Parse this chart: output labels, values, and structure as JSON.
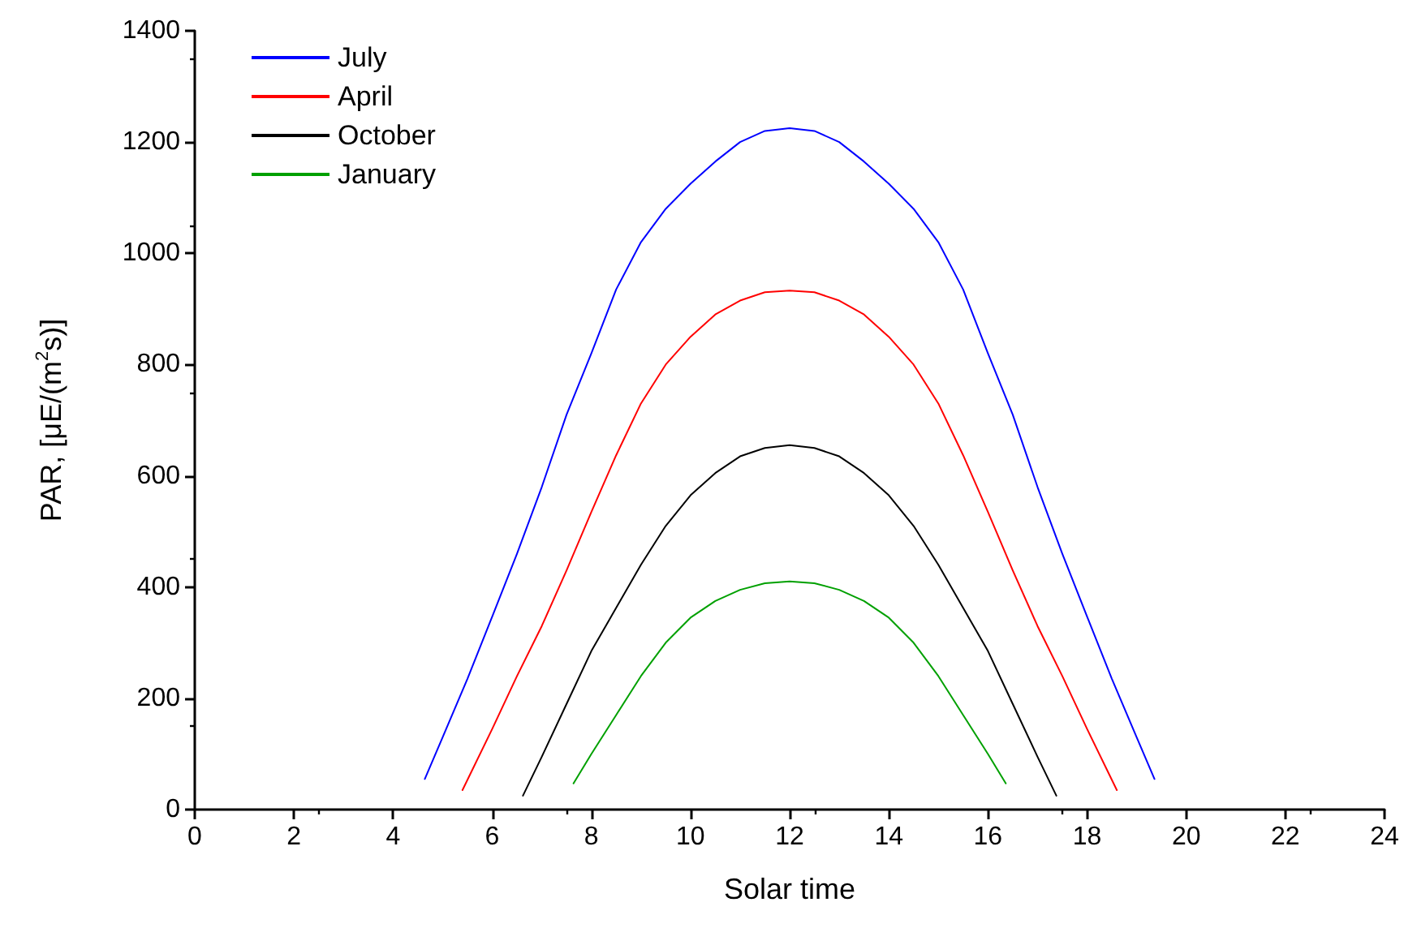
{
  "chart_data": {
    "type": "line",
    "xlabel": "Solar time",
    "ylabel": "PAR, [μE/(m$^{2}$s)]",
    "xlim": [
      0,
      24
    ],
    "xticks": [
      0,
      2,
      4,
      6,
      8,
      10,
      12,
      14,
      16,
      18,
      20,
      22,
      24
    ],
    "ylim": [
      0,
      1400
    ],
    "yticks": [
      0,
      200,
      400,
      600,
      800,
      1000,
      1200,
      1400
    ],
    "grid": false,
    "legend": "top left",
    "marker": "none",
    "line_style": "solid",
    "series": [
      {
        "name": "July",
        "color": "#0000ff",
        "x": [
          4.64,
          5,
          5.5,
          6,
          6.5,
          7,
          7.5,
          8,
          8.5,
          9,
          9.5,
          10,
          10.5,
          11,
          11.5,
          12,
          12.5,
          13,
          13.5,
          14,
          14.5,
          15,
          15.5,
          16,
          16.5,
          17,
          17.5,
          18,
          18.5,
          19,
          19.36
        ],
        "values": [
          55,
          130,
          235,
          347,
          460,
          580,
          710,
          820,
          935,
          1020,
          1080,
          1125,
          1165,
          1200,
          1220,
          1225,
          1220,
          1200,
          1165,
          1125,
          1080,
          1020,
          935,
          820,
          710,
          580,
          460,
          347,
          235,
          130,
          55
        ]
      },
      {
        "name": "April",
        "color": "#ff0000",
        "x": [
          5.4,
          6,
          6.5,
          7,
          7.5,
          8,
          8.5,
          9,
          9.5,
          10,
          10.5,
          11,
          11.5,
          12,
          12.5,
          13,
          13.5,
          14,
          14.5,
          15,
          15.5,
          16,
          16.5,
          17,
          17.5,
          18,
          18.6
        ],
        "values": [
          35,
          145,
          240,
          330,
          430,
          535,
          637,
          730,
          800,
          850,
          890,
          915,
          930,
          933,
          930,
          915,
          890,
          850,
          800,
          730,
          637,
          535,
          430,
          330,
          240,
          145,
          35
        ]
      },
      {
        "name": "October",
        "color": "#000000",
        "x": [
          6.62,
          7,
          7.5,
          8,
          8.4,
          9,
          9.5,
          10,
          10.5,
          11,
          11.5,
          12,
          12.5,
          13,
          13.5,
          14,
          14.5,
          15,
          15.6,
          16,
          16.5,
          17,
          17.38
        ],
        "values": [
          25,
          95,
          190,
          285,
          347,
          440,
          510,
          565,
          605,
          635,
          650,
          655,
          650,
          635,
          605,
          565,
          510,
          440,
          347,
          285,
          190,
          95,
          25
        ]
      },
      {
        "name": "January",
        "color": "#00a000",
        "x": [
          7.64,
          8,
          8.5,
          9,
          9.5,
          10,
          10.5,
          11,
          11.5,
          12,
          12.5,
          13,
          13.5,
          14,
          14.5,
          15,
          15.5,
          16,
          16.36
        ],
        "values": [
          47,
          100,
          170,
          240,
          300,
          345,
          375,
          395,
          407,
          410,
          407,
          395,
          375,
          345,
          300,
          240,
          170,
          100,
          47
        ]
      }
    ]
  }
}
